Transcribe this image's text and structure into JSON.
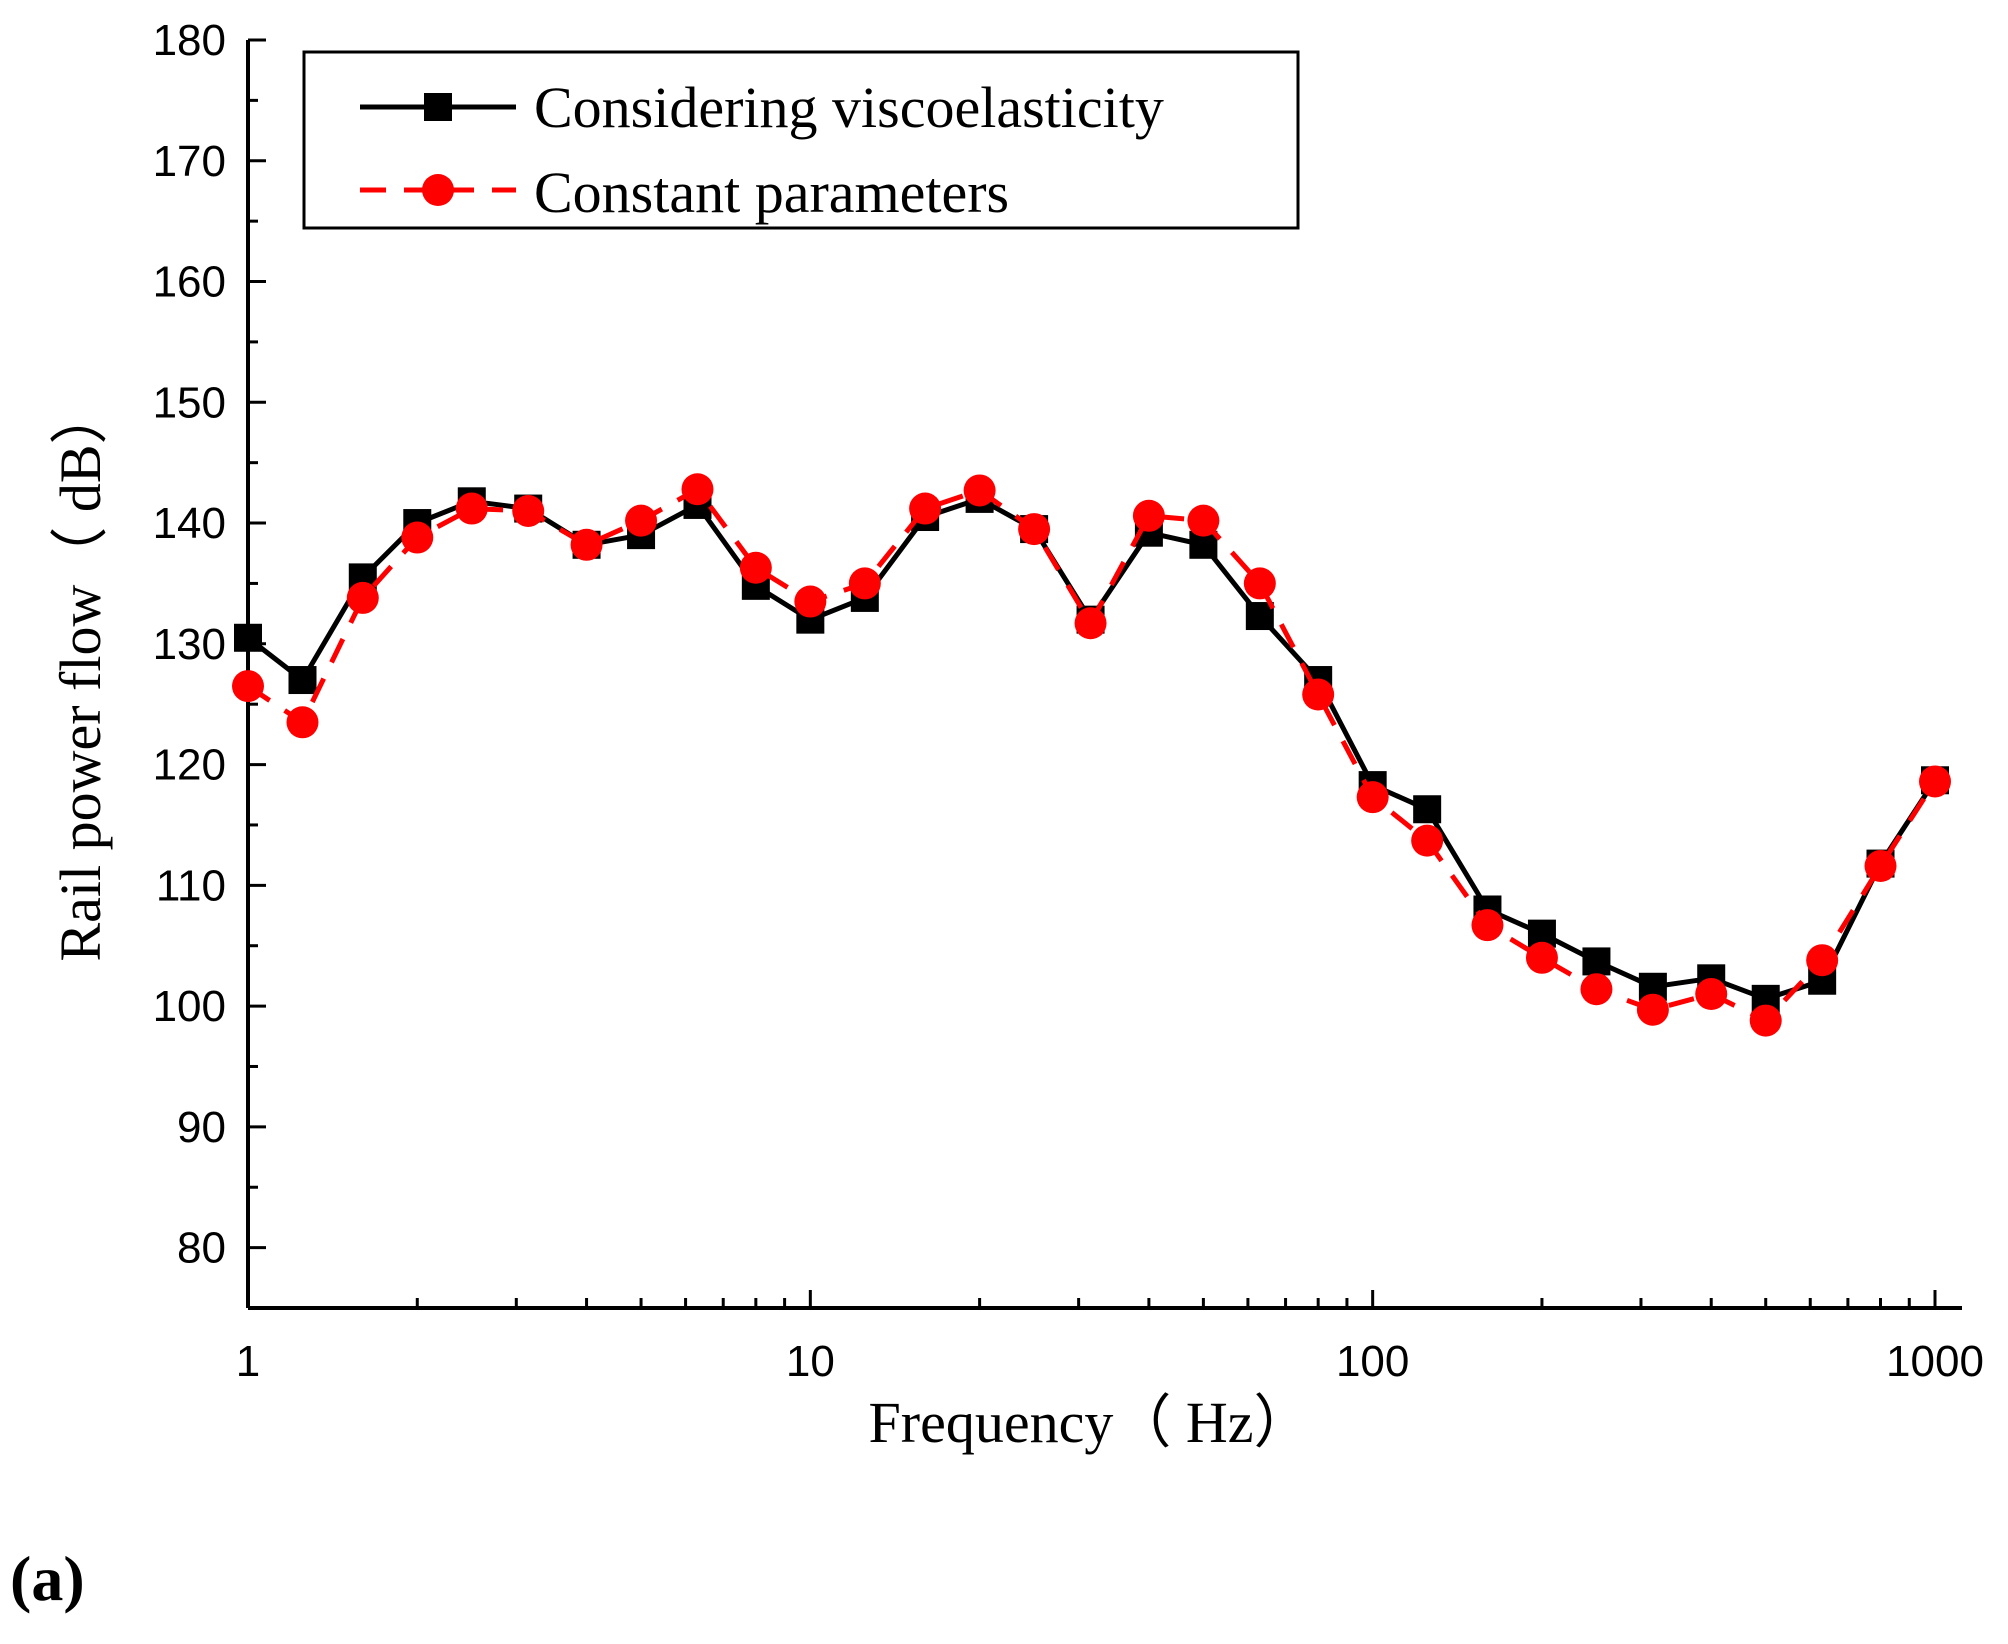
{
  "chart_data": {
    "type": "line",
    "title": "",
    "xlabel": "Frequency（ Hz）",
    "ylabel": "Rail power flow（ dB）",
    "xscale": "log",
    "xlim": [
      1,
      1000
    ],
    "ylim": [
      75,
      180
    ],
    "xticks": [
      1,
      10,
      100,
      1000
    ],
    "xtick_labels": [
      "1",
      "10",
      "100",
      "1000"
    ],
    "yticks": [
      80,
      90,
      100,
      110,
      120,
      130,
      140,
      150,
      160,
      170,
      180
    ],
    "ytick_labels": [
      "80",
      "90",
      "100",
      "110",
      "120",
      "130",
      "140",
      "150",
      "160",
      "170",
      "180"
    ],
    "x": [
      1,
      1.25,
      1.6,
      2,
      2.5,
      3.15,
      4,
      5,
      6.3,
      8,
      10,
      12.5,
      16,
      20,
      25,
      31.5,
      40,
      50,
      63,
      80,
      100,
      125,
      160,
      200,
      250,
      315,
      400,
      500,
      630,
      800,
      1000
    ],
    "series": [
      {
        "name": "Considering viscoelasticity",
        "color": "#000000",
        "line": "solid",
        "marker": "square",
        "values": [
          130.5,
          127.0,
          135.5,
          140.0,
          141.8,
          141.2,
          138.2,
          139.0,
          141.5,
          134.8,
          132.0,
          133.8,
          140.5,
          142.0,
          139.5,
          132.0,
          139.2,
          138.2,
          132.3,
          127.0,
          118.3,
          116.3,
          108.0,
          106.0,
          103.7,
          101.6,
          102.3,
          100.6,
          102.1,
          111.8,
          118.7
        ]
      },
      {
        "name": "Constant parameters",
        "color": "#ff0000",
        "line": "dashed",
        "marker": "circle",
        "values": [
          126.5,
          123.5,
          133.8,
          138.8,
          141.2,
          141.0,
          138.2,
          140.2,
          142.8,
          136.3,
          133.5,
          135.0,
          141.2,
          142.7,
          139.5,
          131.7,
          140.6,
          140.2,
          135.0,
          125.8,
          117.3,
          113.7,
          106.7,
          104.0,
          101.4,
          99.7,
          101.0,
          98.8,
          103.8,
          111.6,
          118.6
        ]
      }
    ],
    "legend": {
      "placement": "top-left"
    },
    "panel_label": "(a)"
  }
}
